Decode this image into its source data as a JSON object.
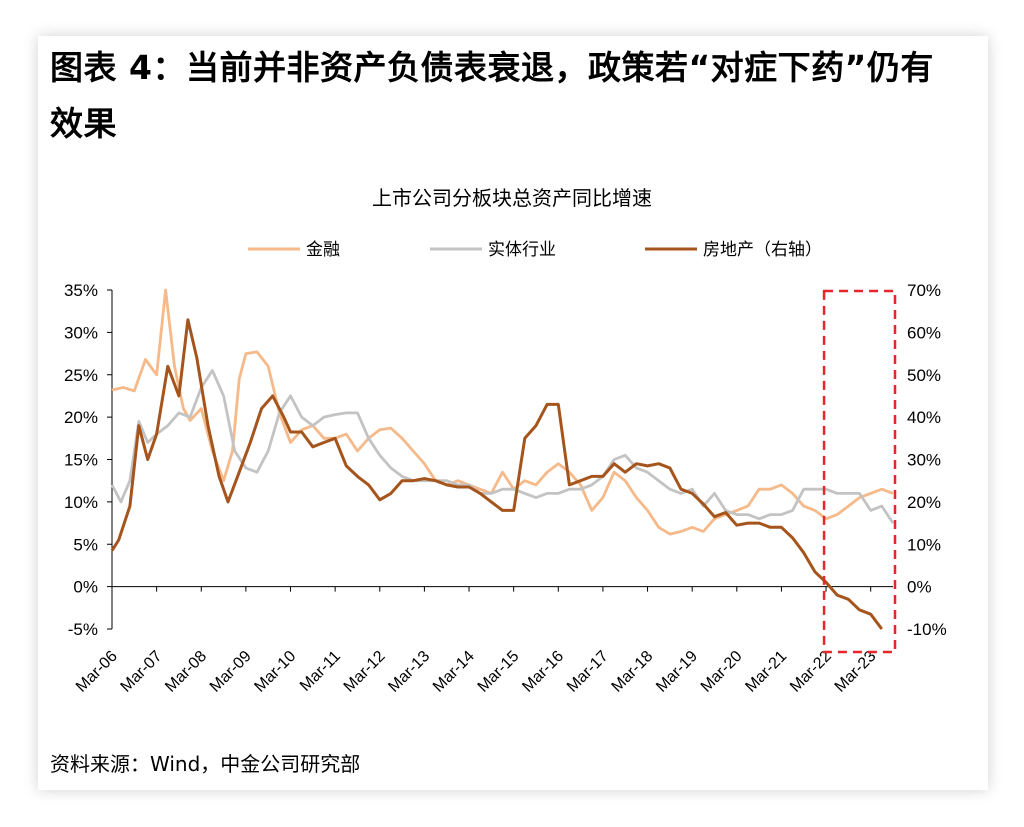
{
  "headline": "图表 4：当前并非资产负债表衰退，政策若“对症下药”仍有效果",
  "source": "资料来源：Wind，中金公司研究部",
  "chart_data": {
    "type": "line",
    "title": "上市公司分板块总资产同比增速",
    "x_labels": [
      "Mar-06",
      "Mar-07",
      "Mar-08",
      "Mar-09",
      "Mar-10",
      "Mar-11",
      "Mar-12",
      "Mar-13",
      "Mar-14",
      "Mar-15",
      "Mar-16",
      "Mar-17",
      "Mar-18",
      "Mar-19",
      "Mar-20",
      "Mar-21",
      "Mar-22",
      "Mar-23"
    ],
    "x_range": [
      2006.0,
      2023.5
    ],
    "left_axis": {
      "min": -5,
      "max": 35,
      "ticks": [
        "-5%",
        "0%",
        "5%",
        "10%",
        "15%",
        "20%",
        "25%",
        "30%",
        "35%"
      ]
    },
    "right_axis": {
      "min": -10,
      "max": 70,
      "ticks": [
        "-10%",
        "0%",
        "10%",
        "20%",
        "30%",
        "40%",
        "50%",
        "60%",
        "70%"
      ]
    },
    "highlight_box": {
      "x_from": 2022.0,
      "x_to": 2023.5
    },
    "series": [
      {
        "name": "金融",
        "color": "#f5b98a",
        "axis": "left",
        "points": [
          [
            2006.0,
            23.2
          ],
          [
            2006.25,
            23.5
          ],
          [
            2006.5,
            23.1
          ],
          [
            2006.75,
            26.8
          ],
          [
            2007.0,
            25.0
          ],
          [
            2007.2,
            35.0
          ],
          [
            2007.4,
            26.0
          ],
          [
            2007.6,
            21.0
          ],
          [
            2007.75,
            19.6
          ],
          [
            2008.0,
            21.0
          ],
          [
            2008.25,
            16.0
          ],
          [
            2008.5,
            12.5
          ],
          [
            2008.7,
            16.0
          ],
          [
            2008.85,
            24.5
          ],
          [
            2009.0,
            27.5
          ],
          [
            2009.25,
            27.7
          ],
          [
            2009.5,
            26.0
          ],
          [
            2009.75,
            20.5
          ],
          [
            2010.0,
            17.0
          ],
          [
            2010.25,
            18.5
          ],
          [
            2010.5,
            19.0
          ],
          [
            2010.75,
            17.5
          ],
          [
            2011.0,
            17.5
          ],
          [
            2011.25,
            18.0
          ],
          [
            2011.5,
            16.0
          ],
          [
            2011.75,
            17.5
          ],
          [
            2012.0,
            18.5
          ],
          [
            2012.25,
            18.7
          ],
          [
            2012.5,
            17.5
          ],
          [
            2012.75,
            16.0
          ],
          [
            2013.0,
            14.5
          ],
          [
            2013.25,
            12.5
          ],
          [
            2013.5,
            12.0
          ],
          [
            2013.75,
            12.5
          ],
          [
            2014.0,
            12.0
          ],
          [
            2014.25,
            11.5
          ],
          [
            2014.5,
            11.0
          ],
          [
            2014.75,
            13.5
          ],
          [
            2015.0,
            11.5
          ],
          [
            2015.25,
            12.5
          ],
          [
            2015.5,
            12.0
          ],
          [
            2015.75,
            13.5
          ],
          [
            2016.0,
            14.5
          ],
          [
            2016.25,
            13.5
          ],
          [
            2016.5,
            12.0
          ],
          [
            2016.75,
            9.0
          ],
          [
            2017.0,
            10.5
          ],
          [
            2017.25,
            13.5
          ],
          [
            2017.5,
            12.5
          ],
          [
            2017.75,
            10.5
          ],
          [
            2018.0,
            9.0
          ],
          [
            2018.25,
            7.0
          ],
          [
            2018.5,
            6.2
          ],
          [
            2018.75,
            6.5
          ],
          [
            2019.0,
            7.0
          ],
          [
            2019.25,
            6.5
          ],
          [
            2019.5,
            8.0
          ],
          [
            2019.75,
            8.5
          ],
          [
            2020.0,
            9.0
          ],
          [
            2020.25,
            9.5
          ],
          [
            2020.5,
            11.5
          ],
          [
            2020.75,
            11.5
          ],
          [
            2021.0,
            12.0
          ],
          [
            2021.25,
            11.0
          ],
          [
            2021.5,
            9.5
          ],
          [
            2021.75,
            9.0
          ],
          [
            2022.0,
            8.0
          ],
          [
            2022.25,
            8.5
          ],
          [
            2022.5,
            9.5
          ],
          [
            2022.75,
            10.5
          ],
          [
            2023.0,
            11.0
          ],
          [
            2023.25,
            11.5
          ],
          [
            2023.5,
            11.0
          ]
        ]
      },
      {
        "name": "实体行业",
        "color": "#c3c3c3",
        "axis": "left",
        "points": [
          [
            2006.0,
            12.0
          ],
          [
            2006.2,
            10.0
          ],
          [
            2006.4,
            12.5
          ],
          [
            2006.6,
            19.5
          ],
          [
            2006.8,
            17.0
          ],
          [
            2007.0,
            18.0
          ],
          [
            2007.25,
            19.0
          ],
          [
            2007.5,
            20.5
          ],
          [
            2007.75,
            20.0
          ],
          [
            2008.0,
            23.5
          ],
          [
            2008.25,
            25.5
          ],
          [
            2008.5,
            22.5
          ],
          [
            2008.75,
            16.0
          ],
          [
            2009.0,
            14.0
          ],
          [
            2009.25,
            13.5
          ],
          [
            2009.5,
            16.0
          ],
          [
            2009.75,
            20.5
          ],
          [
            2010.0,
            22.5
          ],
          [
            2010.25,
            20.0
          ],
          [
            2010.5,
            19.0
          ],
          [
            2010.75,
            20.0
          ],
          [
            2011.0,
            20.3
          ],
          [
            2011.25,
            20.5
          ],
          [
            2011.5,
            20.5
          ],
          [
            2011.75,
            17.5
          ],
          [
            2012.0,
            15.5
          ],
          [
            2012.25,
            14.0
          ],
          [
            2012.5,
            13.0
          ],
          [
            2012.75,
            12.5
          ],
          [
            2013.0,
            12.5
          ],
          [
            2013.25,
            12.5
          ],
          [
            2013.5,
            12.5
          ],
          [
            2013.75,
            12.0
          ],
          [
            2014.0,
            12.0
          ],
          [
            2014.25,
            11.0
          ],
          [
            2014.5,
            11.0
          ],
          [
            2014.75,
            11.5
          ],
          [
            2015.0,
            11.5
          ],
          [
            2015.25,
            11.0
          ],
          [
            2015.5,
            10.5
          ],
          [
            2015.75,
            11.0
          ],
          [
            2016.0,
            11.0
          ],
          [
            2016.25,
            11.5
          ],
          [
            2016.5,
            11.5
          ],
          [
            2016.75,
            12.0
          ],
          [
            2017.0,
            13.0
          ],
          [
            2017.25,
            15.0
          ],
          [
            2017.5,
            15.5
          ],
          [
            2017.75,
            14.0
          ],
          [
            2018.0,
            13.5
          ],
          [
            2018.25,
            12.5
          ],
          [
            2018.5,
            11.5
          ],
          [
            2018.75,
            11.0
          ],
          [
            2019.0,
            11.5
          ],
          [
            2019.25,
            9.5
          ],
          [
            2019.5,
            11.0
          ],
          [
            2019.75,
            9.0
          ],
          [
            2020.0,
            8.5
          ],
          [
            2020.25,
            8.5
          ],
          [
            2020.5,
            8.0
          ],
          [
            2020.75,
            8.5
          ],
          [
            2021.0,
            8.5
          ],
          [
            2021.25,
            9.0
          ],
          [
            2021.5,
            11.5
          ],
          [
            2021.75,
            11.5
          ],
          [
            2022.0,
            11.5
          ],
          [
            2022.25,
            11.0
          ],
          [
            2022.5,
            11.0
          ],
          [
            2022.75,
            11.0
          ],
          [
            2023.0,
            9.0
          ],
          [
            2023.25,
            9.5
          ],
          [
            2023.5,
            7.5
          ]
        ]
      },
      {
        "name": "房地产（右轴）",
        "color": "#a5541b",
        "axis": "right",
        "points": [
          [
            2006.0,
            8.5
          ],
          [
            2006.15,
            11.0
          ],
          [
            2006.4,
            19.0
          ],
          [
            2006.6,
            38.0
          ],
          [
            2006.8,
            30.0
          ],
          [
            2007.0,
            36.0
          ],
          [
            2007.25,
            52.0
          ],
          [
            2007.5,
            45.0
          ],
          [
            2007.7,
            63.0
          ],
          [
            2007.9,
            54.0
          ],
          [
            2008.15,
            38.0
          ],
          [
            2008.4,
            26.0
          ],
          [
            2008.6,
            20.0
          ],
          [
            2008.85,
            27.0
          ],
          [
            2009.1,
            34.0
          ],
          [
            2009.35,
            42.0
          ],
          [
            2009.6,
            45.0
          ],
          [
            2009.85,
            40.0
          ],
          [
            2010.0,
            36.5
          ],
          [
            2010.25,
            36.5
          ],
          [
            2010.5,
            33.0
          ],
          [
            2010.75,
            34.0
          ],
          [
            2011.0,
            35.0
          ],
          [
            2011.25,
            28.5
          ],
          [
            2011.5,
            26.0
          ],
          [
            2011.75,
            24.0
          ],
          [
            2012.0,
            20.5
          ],
          [
            2012.25,
            22.0
          ],
          [
            2012.5,
            25.0
          ],
          [
            2012.75,
            25.0
          ],
          [
            2013.0,
            25.5
          ],
          [
            2013.25,
            25.0
          ],
          [
            2013.5,
            24.0
          ],
          [
            2013.75,
            23.5
          ],
          [
            2014.0,
            23.5
          ],
          [
            2014.25,
            22.0
          ],
          [
            2014.5,
            20.0
          ],
          [
            2014.75,
            18.0
          ],
          [
            2015.0,
            18.0
          ],
          [
            2015.25,
            35.0
          ],
          [
            2015.5,
            38.0
          ],
          [
            2015.75,
            43.0
          ],
          [
            2016.0,
            43.0
          ],
          [
            2016.25,
            24.0
          ],
          [
            2016.5,
            25.0
          ],
          [
            2016.75,
            26.0
          ],
          [
            2017.0,
            26.0
          ],
          [
            2017.25,
            29.0
          ],
          [
            2017.5,
            27.0
          ],
          [
            2017.75,
            29.0
          ],
          [
            2018.0,
            28.5
          ],
          [
            2018.25,
            29.0
          ],
          [
            2018.5,
            28.0
          ],
          [
            2018.75,
            23.0
          ],
          [
            2019.0,
            22.0
          ],
          [
            2019.25,
            19.5
          ],
          [
            2019.5,
            16.5
          ],
          [
            2019.75,
            17.5
          ],
          [
            2020.0,
            14.5
          ],
          [
            2020.25,
            15.0
          ],
          [
            2020.5,
            15.0
          ],
          [
            2020.75,
            14.0
          ],
          [
            2021.0,
            14.0
          ],
          [
            2021.25,
            11.5
          ],
          [
            2021.5,
            8.0
          ],
          [
            2021.75,
            3.5
          ],
          [
            2022.0,
            1.0
          ],
          [
            2022.25,
            -2.0
          ],
          [
            2022.5,
            -3.0
          ],
          [
            2022.75,
            -5.5
          ],
          [
            2023.0,
            -6.5
          ],
          [
            2023.25,
            -10.0
          ]
        ]
      }
    ]
  }
}
